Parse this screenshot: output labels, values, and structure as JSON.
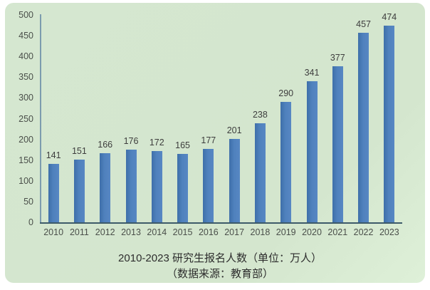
{
  "panel": {
    "background_color": "#d5e7d0",
    "page_background": "#ffffff"
  },
  "chart_data": {
    "type": "bar",
    "categories": [
      "2010",
      "2011",
      "2012",
      "2013",
      "2014",
      "2015",
      "2016",
      "2017",
      "2018",
      "2019",
      "2020",
      "2021",
      "2022",
      "2023"
    ],
    "values": [
      141,
      151,
      166,
      176,
      172,
      165,
      177,
      201,
      238,
      290,
      341,
      377,
      457,
      474
    ],
    "title": "2010-2023 研究生报名人数（单位：万人）",
    "subtitle": "（数据来源：教育部）",
    "xlabel": "",
    "ylabel": "",
    "ylim": [
      0,
      500
    ],
    "ytick_step": 50,
    "ytick_labels": [
      "0",
      "50",
      "100",
      "150",
      "200",
      "250",
      "300",
      "350",
      "400",
      "450",
      "500"
    ],
    "bar_color": "#4f81bd",
    "axis_line_color": "#7c9cae",
    "baseline_color": "#3d5a69",
    "tick_label_color": "#4a4f4a",
    "value_label_color": "#3d3d3d",
    "grid": false,
    "legend": false,
    "value_labels_shown": true
  }
}
